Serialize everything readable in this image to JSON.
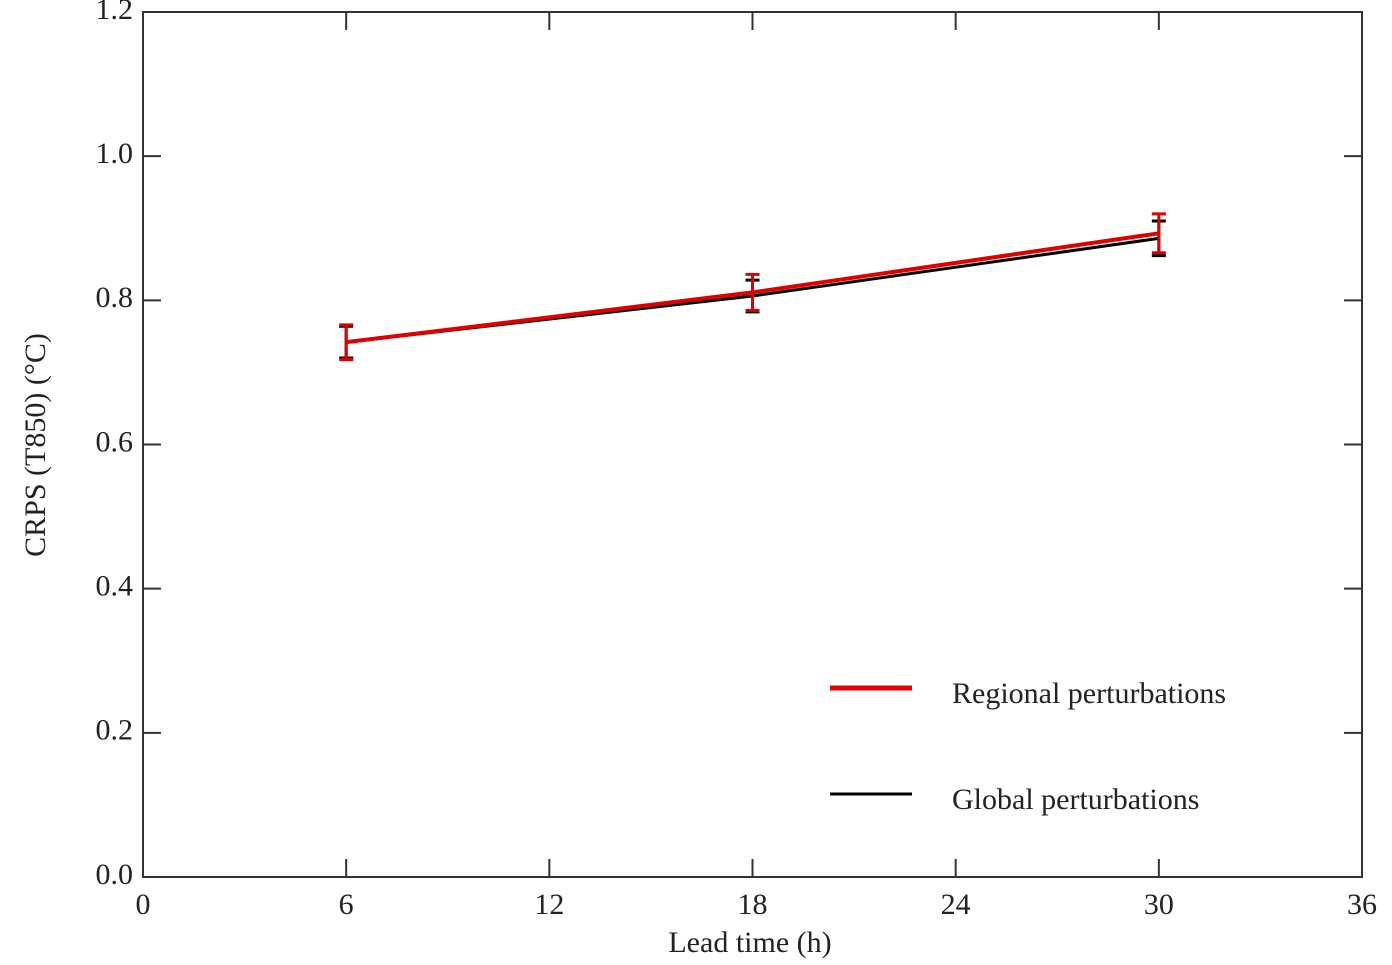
{
  "chart_data": {
    "type": "line",
    "xlabel": "Lead time (h)",
    "ylabel": "CRPS (T850) (°C)",
    "xlim": [
      0,
      36
    ],
    "xticks": [
      0,
      6,
      12,
      18,
      24,
      30,
      36
    ],
    "ylim": [
      0,
      1.2
    ],
    "yticks": [
      {
        "value": 0,
        "label": "0.0"
      },
      0.2,
      0.4,
      0.6,
      0.8,
      {
        "value": 1,
        "label": "1.0"
      },
      1.2
    ],
    "grid": false,
    "legend": "lower right",
    "series": [
      {
        "name": "Global perturbations",
        "color": "#000000",
        "x": [
          6,
          18,
          30
        ],
        "values": [
          0.742,
          0.806,
          0.886
        ],
        "errors": [
          0.022,
          0.022,
          0.024
        ]
      },
      {
        "name": "Regional perturbations",
        "color": "#e00000",
        "x": [
          6,
          18,
          30
        ],
        "values": [
          0.742,
          0.811,
          0.893
        ],
        "errors": [
          0.024,
          0.025,
          0.027
        ]
      }
    ]
  }
}
